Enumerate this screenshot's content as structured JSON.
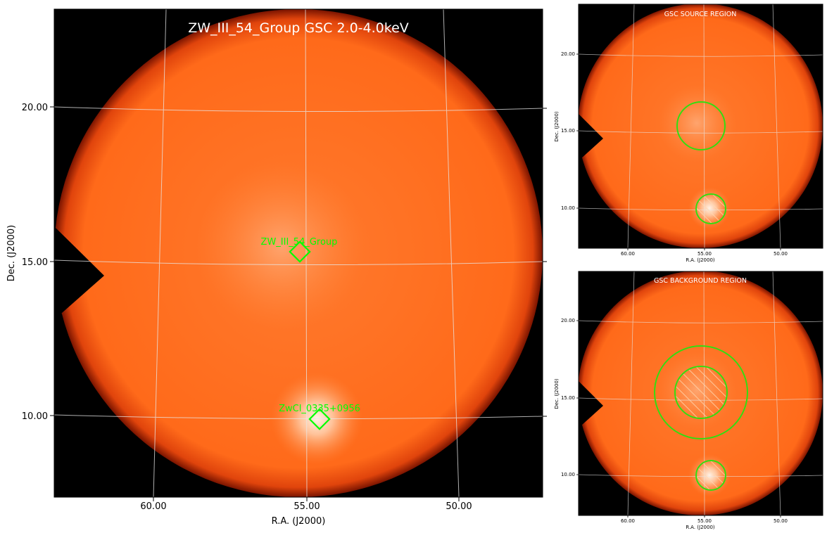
{
  "main": {
    "title": "ZW_III_54_Group GSC 2.0-4.0keV",
    "xlabel": "R.A. (J2000)",
    "ylabel": "Dec. (J2000)",
    "xticks": [
      "60.00",
      "55.00",
      "50.00"
    ],
    "yticks": [
      "20.00",
      "15.00",
      "10.00"
    ],
    "sources": [
      {
        "name": "ZW_III_54_Group"
      },
      {
        "name": "ZwCl_0335+0956"
      }
    ],
    "marker_color": "#00ff00"
  },
  "source_panel": {
    "title": "GSC SOURCE REGION",
    "xlabel": "R.A. (J2000)",
    "ylabel": "Dec. (J2000)",
    "xticks": [
      "60.00",
      "55.00",
      "50.00"
    ],
    "yticks": [
      "20.00",
      "15.00",
      "10.00"
    ]
  },
  "background_panel": {
    "title": "GSC BACKGROUND REGION",
    "xlabel": "R.A. (J2000)",
    "ylabel": "Dec. (J2000)",
    "xticks": [
      "60.00",
      "55.00",
      "50.00"
    ],
    "yticks": [
      "20.00",
      "15.00",
      "10.00"
    ]
  },
  "colors": {
    "disk": "#ff6a1a",
    "sky_bg": "#000000",
    "region": "#33dd11",
    "grid": "#e8e8e8",
    "title_text": "#ffffff"
  }
}
